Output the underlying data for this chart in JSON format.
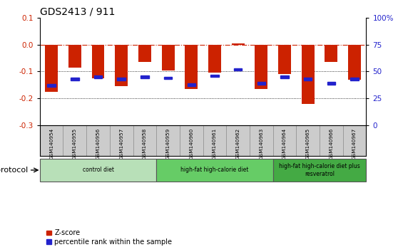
{
  "title": "GDS2413 / 911",
  "samples": [
    "GSM140954",
    "GSM140955",
    "GSM140956",
    "GSM140957",
    "GSM140958",
    "GSM140959",
    "GSM140960",
    "GSM140961",
    "GSM140962",
    "GSM140963",
    "GSM140964",
    "GSM140965",
    "GSM140966",
    "GSM140967"
  ],
  "zscore": [
    -0.175,
    -0.085,
    -0.125,
    -0.155,
    -0.065,
    -0.095,
    -0.165,
    -0.105,
    0.005,
    -0.165,
    -0.11,
    -0.22,
    -0.065,
    -0.13
  ],
  "pct_right": [
    37,
    43,
    45,
    43,
    45,
    44,
    38,
    46,
    52,
    39,
    45,
    43,
    39,
    43
  ],
  "bar_color": "#cc2200",
  "dot_color": "#2222cc",
  "ylim_left": [
    -0.3,
    0.1
  ],
  "ylim_right": [
    0,
    100
  ],
  "yticks_left": [
    -0.3,
    -0.2,
    -0.1,
    0.0,
    0.1
  ],
  "yticks_right": [
    0,
    25,
    50,
    75,
    100
  ],
  "hline_y": 0.0,
  "dotted_lines": [
    -0.1,
    -0.2
  ],
  "groups": [
    {
      "label": "control diet",
      "start": 0,
      "end": 5,
      "color": "#b8e0b8"
    },
    {
      "label": "high-fat high-calorie diet",
      "start": 5,
      "end": 10,
      "color": "#66cc66"
    },
    {
      "label": "high-fat high-calorie diet plus\nresveratrol",
      "start": 10,
      "end": 14,
      "color": "#44aa44"
    }
  ],
  "xlabel_protocol": "protocol",
  "bar_width": 0.55,
  "title_fontsize": 10,
  "background_color": "#ffffff",
  "plot_bg": "#ffffff",
  "sample_bg": "#cccccc"
}
